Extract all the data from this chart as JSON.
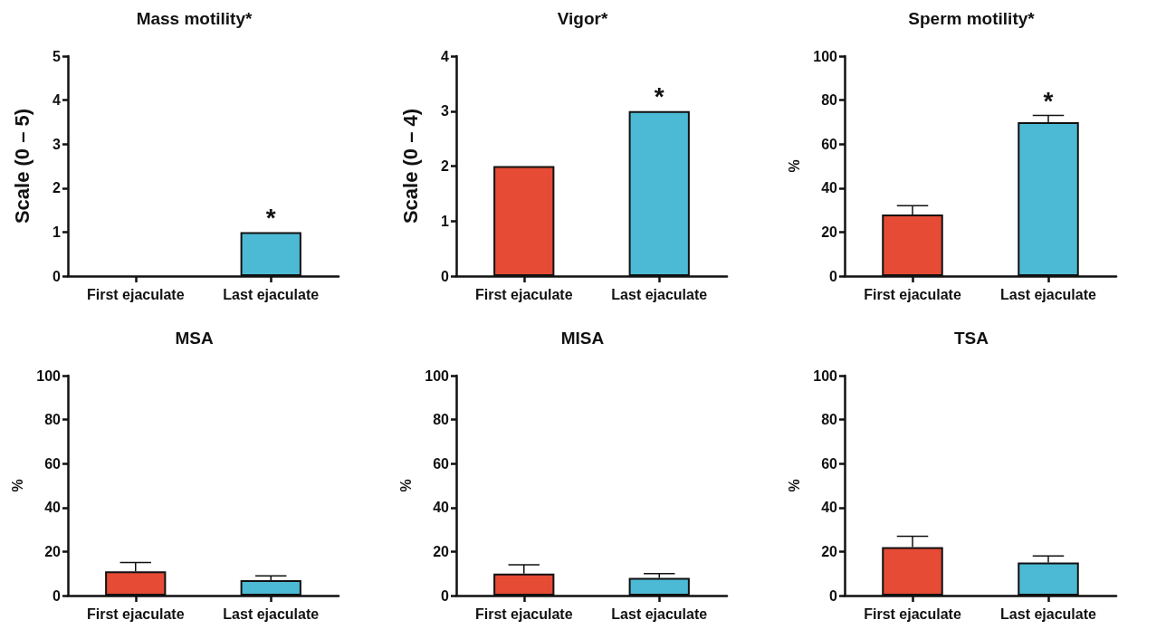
{
  "chart_data": [
    {
      "type": "bar",
      "title": "Mass motility*",
      "ylabel": "Scale (0 – 5)",
      "categories": [
        "First ejaculate",
        "Last ejaculate"
      ],
      "values": [
        0,
        1
      ],
      "colors": [
        "#e54b35",
        "#4dbad5"
      ],
      "ylim": [
        0,
        5
      ],
      "yticks": [
        0,
        1,
        2,
        3,
        4,
        5
      ],
      "annotations": [
        {
          "text": "*",
          "x": "Last ejaculate",
          "y": 1
        }
      ]
    },
    {
      "type": "bar",
      "title": "Vigor*",
      "ylabel": "Scale (0 – 4)",
      "categories": [
        "First ejaculate",
        "Last ejaculate"
      ],
      "values": [
        2,
        3
      ],
      "colors": [
        "#e54b35",
        "#4dbad5"
      ],
      "ylim": [
        0,
        4
      ],
      "yticks": [
        0,
        1,
        2,
        3,
        4
      ],
      "annotations": [
        {
          "text": "*",
          "x": "Last ejaculate",
          "y": 3
        }
      ]
    },
    {
      "type": "bar",
      "title": "Sperm motility*",
      "ylabel": "%",
      "categories": [
        "First ejaculate",
        "Last ejaculate"
      ],
      "values": [
        28,
        70
      ],
      "errors": [
        [
          28,
          32
        ],
        [
          70,
          73
        ]
      ],
      "colors": [
        "#e54b35",
        "#4dbad5"
      ],
      "ylim": [
        0,
        100
      ],
      "yticks": [
        0,
        20,
        40,
        60,
        80,
        100
      ],
      "annotations": [
        {
          "text": "*",
          "x": "Last ejaculate",
          "y": 73
        }
      ]
    },
    {
      "type": "bar",
      "title": "MSA",
      "ylabel": "%",
      "categories": [
        "First ejaculate",
        "Last ejaculate"
      ],
      "values": [
        11,
        7
      ],
      "errors": [
        [
          11,
          15
        ],
        [
          7,
          9
        ]
      ],
      "colors": [
        "#e54b35",
        "#4dbad5"
      ],
      "ylim": [
        0,
        100
      ],
      "yticks": [
        0,
        20,
        40,
        60,
        80,
        100
      ]
    },
    {
      "type": "bar",
      "title": "MISA",
      "ylabel": "%",
      "categories": [
        "First ejaculate",
        "Last ejaculate"
      ],
      "values": [
        10,
        8
      ],
      "errors": [
        [
          10,
          14
        ],
        [
          8,
          10
        ]
      ],
      "colors": [
        "#e54b35",
        "#4dbad5"
      ],
      "ylim": [
        0,
        100
      ],
      "yticks": [
        0,
        20,
        40,
        60,
        80,
        100
      ]
    },
    {
      "type": "bar",
      "title": "TSA",
      "ylabel": "%",
      "categories": [
        "First ejaculate",
        "Last ejaculate"
      ],
      "values": [
        22,
        15
      ],
      "errors": [
        [
          22,
          27
        ],
        [
          15,
          18
        ]
      ],
      "colors": [
        "#e54b35",
        "#4dbad5"
      ],
      "ylim": [
        0,
        100
      ],
      "yticks": [
        0,
        20,
        40,
        60,
        80,
        100
      ]
    }
  ]
}
